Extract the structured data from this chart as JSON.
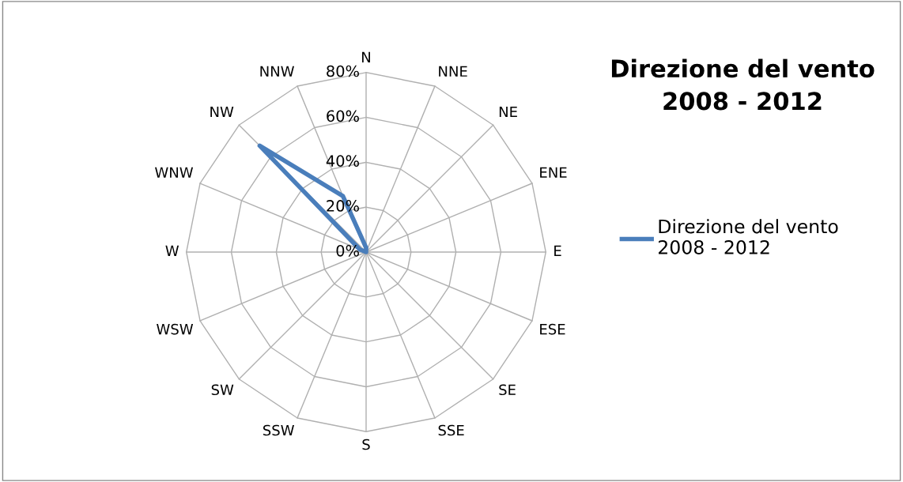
{
  "chart_data": {
    "type": "radar",
    "title": "Direzione del vento\n2008 - 2012",
    "categories": [
      "N",
      "NNE",
      "NE",
      "ENE",
      "E",
      "ESE",
      "SE",
      "SSE",
      "S",
      "SSW",
      "SW",
      "WSW",
      "W",
      "WNW",
      "NW",
      "NNW"
    ],
    "series": [
      {
        "name": "Direzione del vento\n2008 - 2012",
        "color": "#4a7ebb",
        "values": [
          2,
          0,
          0,
          0,
          0,
          0,
          0,
          0,
          0,
          0,
          0,
          0,
          0,
          3,
          67,
          27
        ]
      }
    ],
    "ylim": [
      0,
      80
    ],
    "yticks": [
      {
        "value": 0,
        "label": "0%"
      },
      {
        "value": 20,
        "label": "20%"
      },
      {
        "value": 40,
        "label": "40%"
      },
      {
        "value": 60,
        "label": "60%"
      },
      {
        "value": 80,
        "label": "80%"
      }
    ],
    "grid": true,
    "legend": "right",
    "marker": "none",
    "line_style": "solid"
  }
}
